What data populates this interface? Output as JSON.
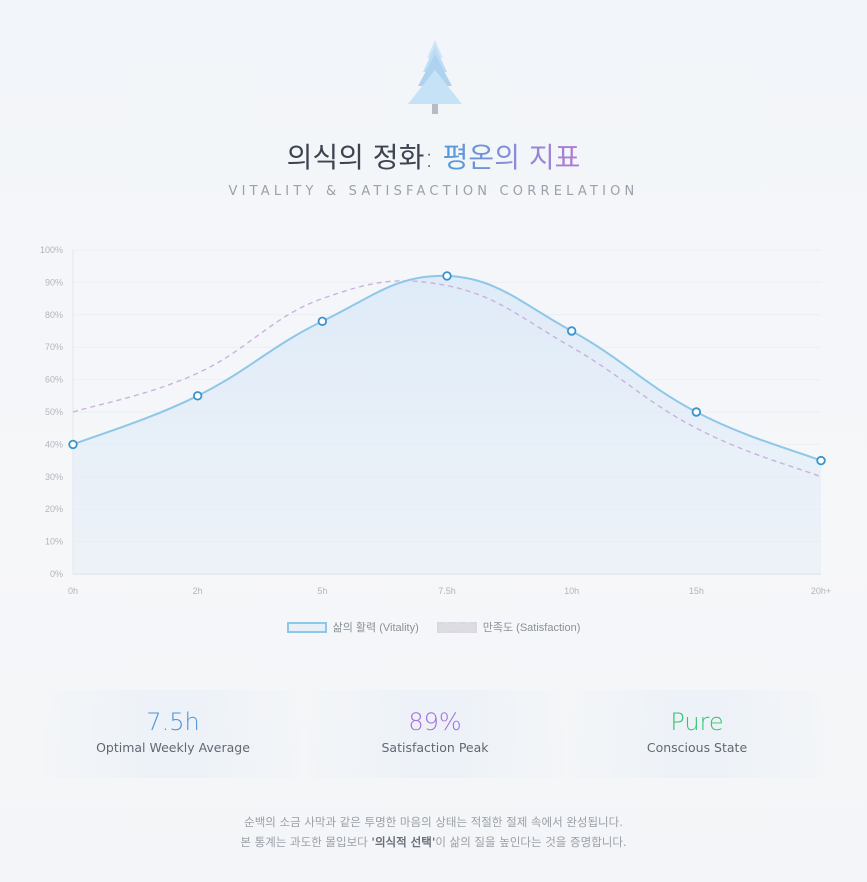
{
  "header": {
    "title_part1": "의식의 정화: ",
    "title_part2": "평온의 지표",
    "subtitle": "VITALITY & SATISFACTION CORRELATION",
    "logo_icon": "pine-tree-icon"
  },
  "chart_data": {
    "type": "line",
    "categories": [
      "0h",
      "2h",
      "5h",
      "7.5h",
      "10h",
      "15h",
      "20h+"
    ],
    "series": [
      {
        "name": "삶의 활력 (Vitality)",
        "values": [
          40,
          55,
          78,
          92,
          75,
          50,
          35
        ],
        "color": "#8ec7e8",
        "style": "solid",
        "fill": true,
        "markers": true
      },
      {
        "name": "만족도 (Satisfaction)",
        "values": [
          50,
          62,
          85,
          89,
          70,
          45,
          30
        ],
        "color": "#c9b3dd",
        "style": "dashed",
        "fill": false,
        "markers": false
      }
    ],
    "yticks": [
      "0%",
      "10%",
      "20%",
      "30%",
      "40%",
      "50%",
      "60%",
      "70%",
      "80%",
      "90%",
      "100%"
    ],
    "ylim": [
      0,
      100
    ],
    "grid": true,
    "legend_position": "bottom"
  },
  "stats": [
    {
      "value": "7.5h",
      "label": "Optimal Weekly Average",
      "color": "#4f94d8"
    },
    {
      "value": "89%",
      "label": "Satisfaction Peak",
      "color": "#a66ee0"
    },
    {
      "value": "Pure",
      "label": "Conscious State",
      "color": "#2ec56c"
    }
  ],
  "footer": {
    "line1": "순백의 소금 사막과 같은 투명한 마음의 상태는 적절한 절제 속에서 완성됩니다.",
    "line2_pre": "본 통계는 과도한 몰입보다 '",
    "line2_bold": "'의식적 선택'",
    "line2_post": "이 삶의 질을 높인다는 것을 증명합니다."
  }
}
